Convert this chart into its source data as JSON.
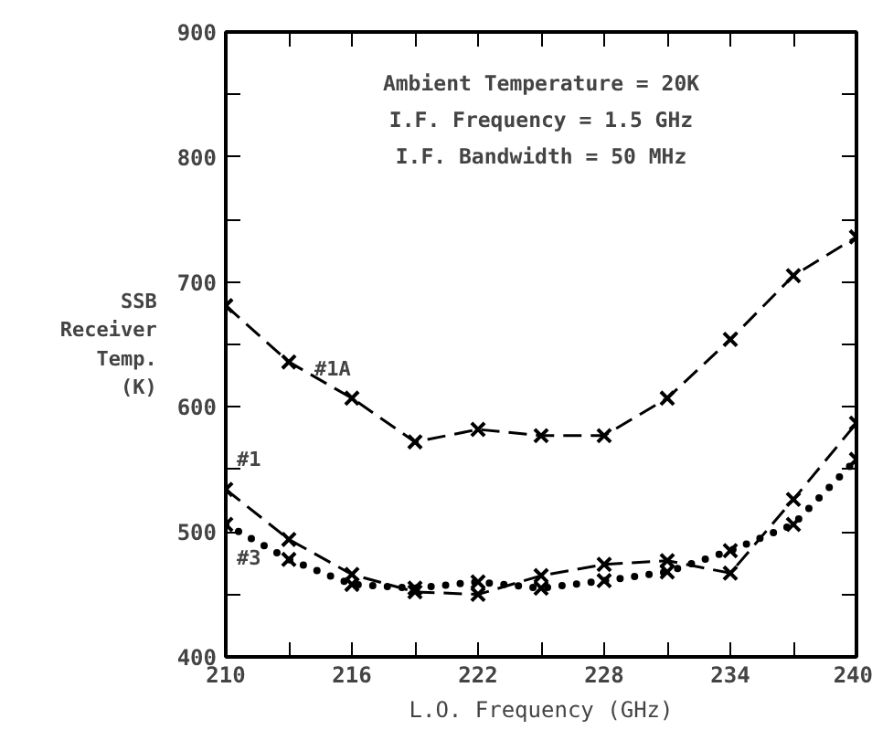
{
  "chart_data": {
    "type": "line",
    "xlabel": "L.O. Frequency (GHz)",
    "ylabel": "SSB Receiver Temp. (K)",
    "annotations": [
      "Ambient Temperature = 20K",
      "I.F. Frequency = 1.5 GHz",
      "I.F. Bandwidth = 50 MHz"
    ],
    "x": [
      210,
      213,
      216,
      219,
      222,
      225,
      228,
      231,
      234,
      237,
      240
    ],
    "series": [
      {
        "name": "#1A",
        "color": "#000000",
        "line_style": "dashed",
        "values": [
          681,
          636,
          607,
          572,
          582,
          577,
          577,
          607,
          654,
          705,
          736
        ]
      },
      {
        "name": "#1",
        "color": "#000000",
        "line_style": "dashed",
        "values": [
          534,
          494,
          466,
          452,
          450,
          465,
          474,
          477,
          467,
          526,
          587
        ]
      },
      {
        "name": "#3",
        "color": "#000000",
        "line_style": "dotted",
        "values": [
          506,
          478,
          458,
          455,
          460,
          455,
          461,
          468,
          485,
          506,
          558
        ]
      }
    ],
    "marker": "cross",
    "xlim": [
      210,
      240
    ],
    "ylim": [
      400,
      900
    ],
    "xticks": [
      210,
      {
        "value": 213,
        "label": null
      },
      216,
      {
        "value": 219,
        "label": null
      },
      222,
      {
        "value": 225,
        "label": null
      },
      228,
      {
        "value": 231,
        "label": null
      },
      234,
      {
        "value": 237,
        "label": null
      },
      240
    ],
    "yticks": [
      400,
      {
        "value": 450,
        "label": null
      },
      500,
      {
        "value": 550,
        "label": null
      },
      600,
      {
        "value": 650,
        "label": null
      },
      700,
      {
        "value": 750,
        "label": null
      },
      800,
      {
        "value": 850,
        "label": null
      },
      900
    ],
    "grid": false
  }
}
